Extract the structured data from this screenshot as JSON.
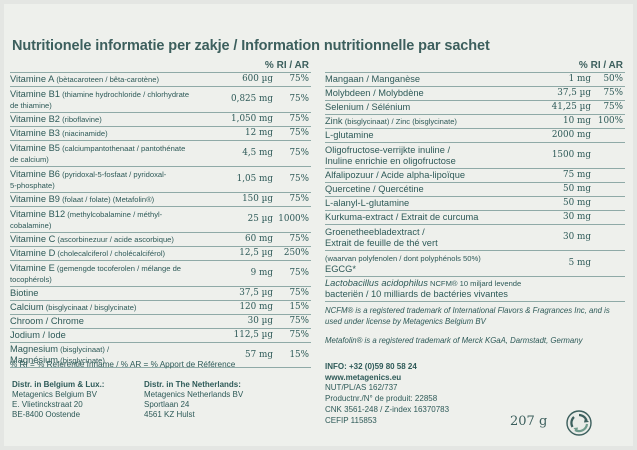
{
  "title": "Nutritionele informatie per zakje / Information nutritionnelle par sachet",
  "header_pct": "% RI / AR",
  "left_rows": [
    {
      "name": "Vitamine A",
      "sub": " (bètacaroteen / bêta-carotène)",
      "amount": "600 µg",
      "pct": "75%"
    },
    {
      "name": "Vitamine B1",
      "sub": " (thiamine hydrochloride / chlorhydrate",
      "line2": "de thiamine)",
      "amount": "0,825 mg",
      "pct": "75%"
    },
    {
      "name": "Vitamine B2",
      "sub": " (riboflavine)",
      "amount": "1,050 mg",
      "pct": "75%"
    },
    {
      "name": "Vitamine B3",
      "sub": " (niacinamide)",
      "amount": "12 mg",
      "pct": "75%"
    },
    {
      "name": "Vitamine B5",
      "sub": " (calciumpantothenaat / pantothénate",
      "line2": "de calcium)",
      "amount": "4,5 mg",
      "pct": "75%"
    },
    {
      "name": "Vitamine B6",
      "sub": " (pyridoxal-5-fosfaat / pyridoxal-",
      "line2": "5-phosphate)",
      "amount": "1,05 mg",
      "pct": "75%"
    },
    {
      "name": "Vitamine B9",
      "sub": " (folaat / folate) (Metafolin®)",
      "amount": "150 µg",
      "pct": "75%"
    },
    {
      "name": "Vitamine B12",
      "sub": " (methylcobalamine / méthyl-",
      "line2": "cobalamine)",
      "amount": "25 µg",
      "pct": "1000%"
    },
    {
      "name": "Vitamine C",
      "sub": " (ascorbinezuur / acide ascorbique)",
      "amount": "60 mg",
      "pct": "75%"
    },
    {
      "name": "Vitamine D",
      "sub": " (cholecalciferol / cholécalciférol)",
      "amount": "12,5 µg",
      "pct": "250%"
    },
    {
      "name": "Vitamine E",
      "sub": " (gemengde tocoferolen / mélange de",
      "line2": "tocophérols)",
      "amount": "9 mg",
      "pct": "75%"
    },
    {
      "name": "Biotine",
      "sub": "",
      "amount": "37,5 µg",
      "pct": "75%"
    },
    {
      "name": "Calcium",
      "sub": " (bisglycinaat / bisglycinate)",
      "amount": "120 mg",
      "pct": "15%"
    },
    {
      "name": "Chroom / Chrome",
      "sub": "",
      "amount": "30 µg",
      "pct": "75%"
    },
    {
      "name": "Jodium / Iode",
      "sub": "",
      "amount": "112,5 µg",
      "pct": "75%"
    },
    {
      "name": "Magnesium",
      "sub": " (bisglycinaat) /",
      "line2main": "Magnésium",
      "line2": " (bisglycinate)",
      "amount": "57 mg",
      "pct": "15%"
    }
  ],
  "right_rows": [
    {
      "name": "Mangaan / Manganèse",
      "sub": "",
      "amount": "1 mg",
      "pct": "50%"
    },
    {
      "name": "Molybdeen / Molybdène",
      "sub": "",
      "amount": "37,5 µg",
      "pct": "75%"
    },
    {
      "name": "Selenium / Sélénium",
      "sub": "",
      "amount": "41,25 µg",
      "pct": "75%"
    },
    {
      "name": "Zink",
      "sub": " (bisglycinaat) / Zinc (bisglycinate)",
      "amount": "10 mg",
      "pct": "100%"
    },
    {
      "name": "L-glutamine",
      "sub": "",
      "amount": "2000 mg",
      "pct": ""
    },
    {
      "name": "Oligofructose-verrijkte inuline /",
      "line2main": "Inuline enrichie en oligofructose",
      "amount": "1500 mg",
      "pct": ""
    },
    {
      "name": "Alfalipozuur / Acide alpha-lipoïque",
      "sub": "",
      "amount": "75 mg",
      "pct": ""
    },
    {
      "name": "Quercetine / Quercétine",
      "sub": "",
      "amount": "50 mg",
      "pct": ""
    },
    {
      "name": "L-alanyl-L-glutamine",
      "sub": "",
      "amount": "50 mg",
      "pct": ""
    },
    {
      "name": "Kurkuma-extract / Extrait de curcuma",
      "sub": "",
      "amount": "30 mg",
      "pct": ""
    },
    {
      "name": "Groenetheebladextract /",
      "line2main": "Extrait de feuille de thé vert",
      "amount": "30 mg",
      "pct": ""
    },
    {
      "name": "(waarvan polyfenolen / dont polyphénols 50%)",
      "line2main": "EGCG*",
      "amount": "5 mg",
      "pct": "",
      "small": true
    },
    {
      "name": "Lactobacillus acidophilus",
      "sub": " NCFM® 10 miljard levende",
      "line2main": "bacteriën / 10 milliards de bactéries vivantes",
      "amount": "",
      "pct": "",
      "lacto": true
    }
  ],
  "ri_note": "% RI = % Referentie Inname / % AR = % Apport de Référence",
  "distr_be": {
    "title": "Distr. in Belgium & Lux.:",
    "l1": "Metagenics Belgium BV",
    "l2": "E. Vlietinckstraat 20",
    "l3": "BE-8400 Oostende"
  },
  "distr_nl": {
    "title": "Distr. in The Netherlands:",
    "l1": "Metagenics Netherlands BV",
    "l2": "Sportlaan 24",
    "l3": "4561 KZ Hulst"
  },
  "note1": "NCFM® is a registered trademark of International Flavors & Fragrances Inc, and is used under license by Metagenics Belgium BV",
  "note2": "Metafolin® is a registered trademark of Merck KGaA, Darmstadt, Germany",
  "info": {
    "phone": "INFO: +32 (0)59 80 58 24",
    "web": "www.metagenics.eu",
    "nut": "NUT/PL/AS 162/737",
    "product": "Productnr./N° de produit: 22858",
    "cnk": "CNK 3561-248 / Z-index 16370783",
    "cefip": "CEFIP 115853"
  },
  "weight": "207 g",
  "icons": {
    "recycle": "recycle-icon"
  }
}
